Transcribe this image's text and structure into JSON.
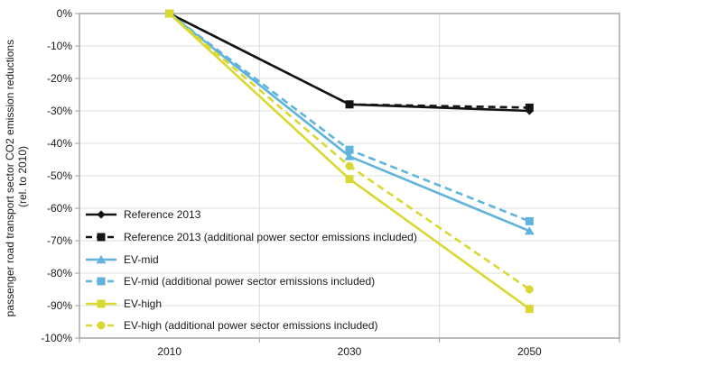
{
  "chart_data": {
    "type": "line",
    "title": "",
    "ylabel_line1": "passenger road transport sector CO2 emission reductions",
    "ylabel_line2": "(rel. to 2010)",
    "xlabel": "",
    "categories": [
      "2010",
      "2030",
      "2050"
    ],
    "y_ticks": [
      "0%",
      "-10%",
      "-20%",
      "-30%",
      "-40%",
      "-50%",
      "-60%",
      "-70%",
      "-80%",
      "-90%",
      "-100%"
    ],
    "ylim": [
      -100,
      0
    ],
    "y_unit": "%",
    "grid": true,
    "legend_position": "inside-left",
    "series": [
      {
        "name": "Reference 2013",
        "values": [
          0,
          -28,
          -30
        ],
        "color": "#141414",
        "dash": "solid",
        "marker": "diamond"
      },
      {
        "name": "Reference 2013 (additional power sector emissions included)",
        "values": [
          0,
          -28,
          -29
        ],
        "color": "#141414",
        "dash": "dashed",
        "marker": "square"
      },
      {
        "name": "EV-mid",
        "values": [
          0,
          -44,
          -67
        ],
        "color": "#5fb3dc",
        "dash": "solid",
        "marker": "triangle"
      },
      {
        "name": "EV-mid (additional power sector emissions included)",
        "values": [
          0,
          -42,
          -64
        ],
        "color": "#5fb3dc",
        "dash": "dashed",
        "marker": "square"
      },
      {
        "name": "EV-high",
        "values": [
          0,
          -51,
          -91
        ],
        "color": "#d9d832",
        "dash": "solid",
        "marker": "square"
      },
      {
        "name": "EV-high (additional power sector emissions included)",
        "values": [
          0,
          -47,
          -85
        ],
        "color": "#d9d832",
        "dash": "dashed",
        "marker": "circle"
      }
    ]
  }
}
